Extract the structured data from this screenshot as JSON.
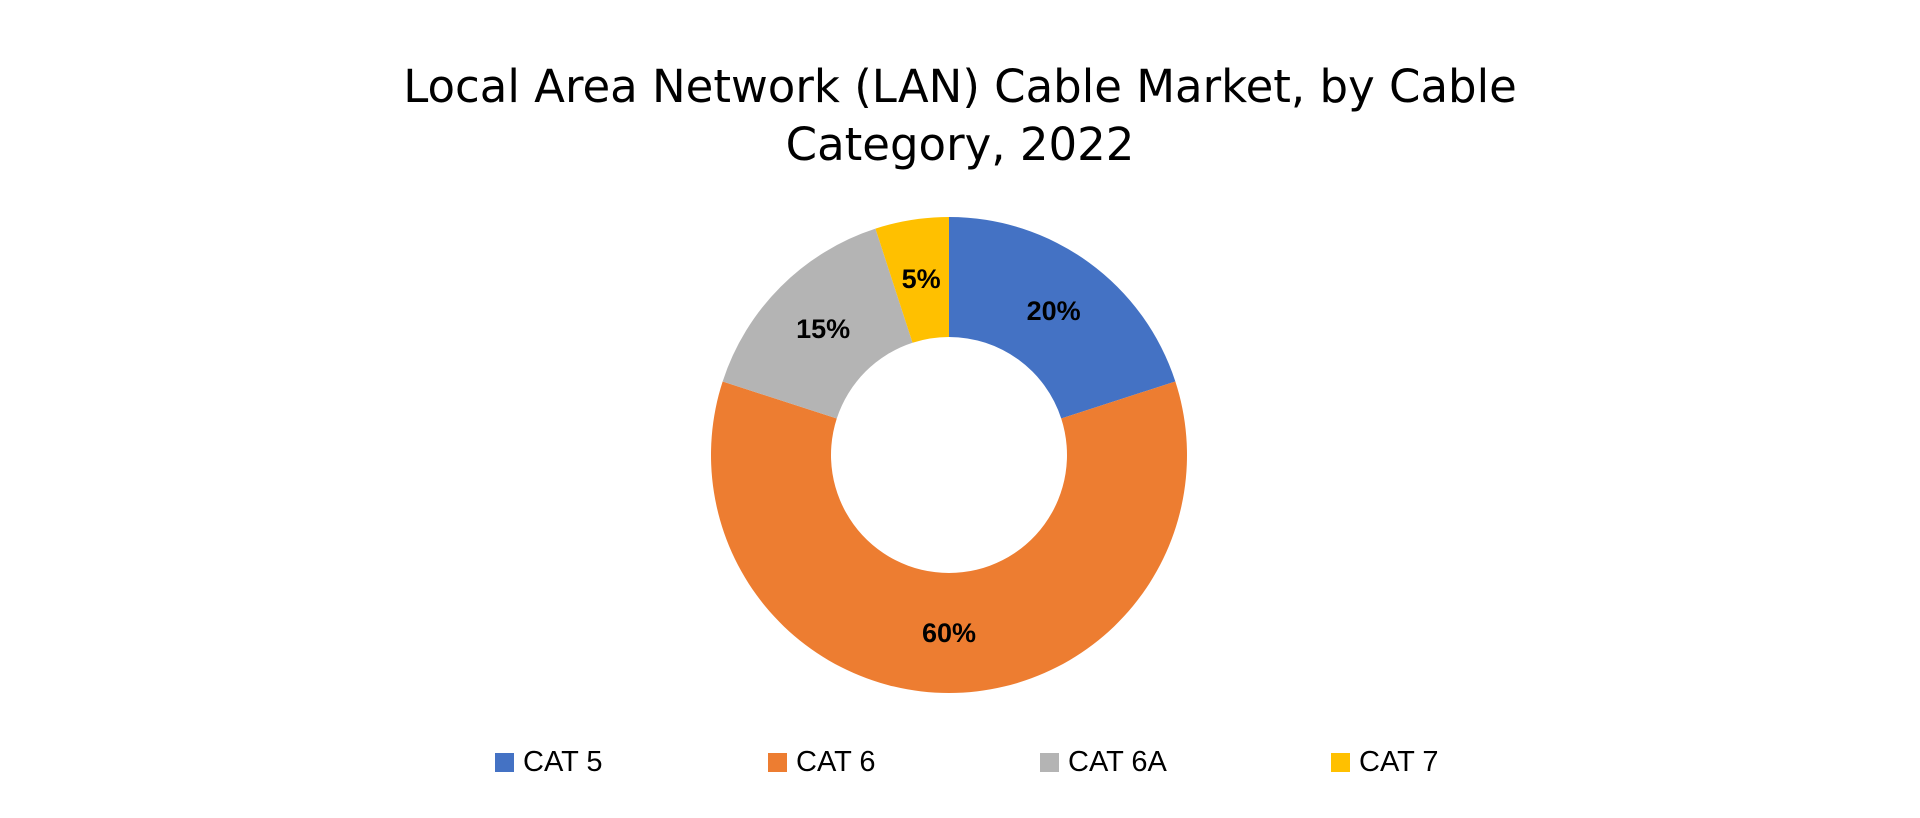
{
  "chart_data": {
    "type": "pie",
    "variant": "donut",
    "title_lines": [
      "Local Area Network (LAN) Cable Market, by Cable",
      "Category, 2022"
    ],
    "categories": [
      "CAT 5",
      "CAT 6",
      "CAT 6A",
      "CAT 7"
    ],
    "values": [
      20,
      60,
      15,
      5
    ],
    "labels": [
      "20%",
      "60%",
      "15%",
      "5%"
    ],
    "colors": [
      "#4472C4",
      "#ED7D31",
      "#B4B4B4",
      "#FFC000"
    ],
    "legend_position": "bottom",
    "start_angle": "12 o'clock",
    "direction": "clockwise"
  }
}
